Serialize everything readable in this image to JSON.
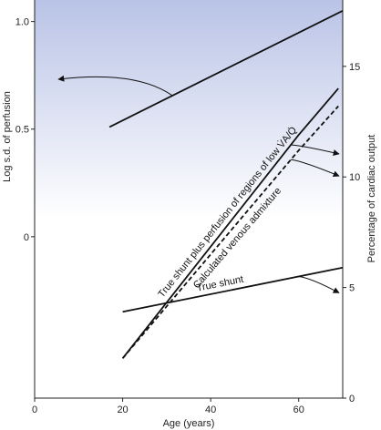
{
  "chart_data": {
    "type": "line",
    "xlabel": "Age (years)",
    "ylabel_left": "Log s.d. of perfusion",
    "ylabel_right": "Percentage of cardiac output",
    "xlim": [
      0,
      70
    ],
    "ylim_left": [
      -0.75,
      1.1
    ],
    "ylim_right": [
      0,
      18
    ],
    "x_ticks": [
      0,
      20,
      40,
      60
    ],
    "y_left_ticks": [
      0,
      0.5,
      1.0
    ],
    "y_left_tick_labels": [
      "0",
      "0.5",
      "1.0"
    ],
    "y_right_ticks": [
      0,
      5,
      10,
      15
    ],
    "y_right_tick_labels": [
      "0",
      "5",
      "10",
      "15"
    ],
    "grid": false,
    "background_gradient": [
      "#b9c3e6",
      "#ffffff"
    ],
    "series": [
      {
        "axis": "left",
        "style": "solid",
        "x": [
          17,
          70
        ],
        "y": [
          0.51,
          1.05
        ]
      },
      {
        "name": "True shunt plus perfusion of regions of low V̇A/Q̇",
        "axis": "right",
        "style": "solid",
        "x": [
          20,
          60,
          69
        ],
        "y": [
          1.8,
          11.9,
          14.0
        ]
      },
      {
        "name": "Calculated venous admixture",
        "axis": "right",
        "style": "dashed",
        "x": [
          20,
          60,
          69
        ],
        "y": [
          1.8,
          11.2,
          13.2
        ]
      },
      {
        "name": "True shunt",
        "axis": "right",
        "style": "solid",
        "x": [
          20,
          70
        ],
        "y": [
          3.9,
          5.9
        ]
      }
    ],
    "annotations": [
      {
        "text": "True shunt plus perfusion of regions of low V̇A/Q̇",
        "series": 1
      },
      {
        "text": "Calculated venous admixture",
        "series": 2
      },
      {
        "text": "True shunt",
        "series": 3
      }
    ]
  }
}
